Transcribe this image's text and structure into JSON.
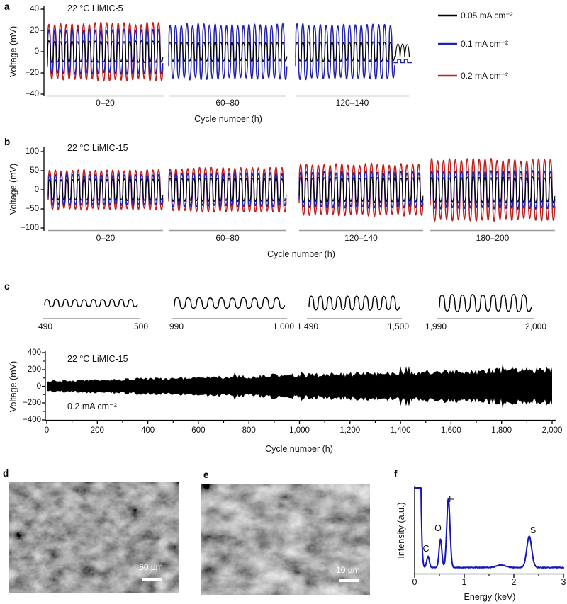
{
  "panels": {
    "a": {
      "label": "a",
      "title": "22 °C LiMIC-5",
      "ylabel": "Voltage (mV)",
      "xlabel": "Cycle number (h)",
      "yticks": [
        "40",
        "20",
        "0",
        "−20",
        "−40"
      ],
      "segment_labels": [
        "0–20",
        "60–80",
        "120–140"
      ]
    },
    "b": {
      "label": "b",
      "title": "22 °C LiMIC-15",
      "ylabel": "Voltage (mV)",
      "xlabel": "Cycle number (h)",
      "yticks": [
        "100",
        "50",
        "0",
        "−50",
        "−100"
      ],
      "segment_labels": [
        "0–20",
        "60–80",
        "120–140",
        "180–200"
      ]
    },
    "c": {
      "label": "c",
      "title": "22 °C LiMIC-15",
      "current": "0.2 mA cm⁻²",
      "ylabel": "Voltage (mV)",
      "xlabel": "Cycle number (h)",
      "yticks": [
        "400",
        "200",
        "0",
        "−200",
        "−400"
      ],
      "xticks": [
        "0",
        "200",
        "400",
        "600",
        "800",
        "1,000",
        "1,200",
        "1,400",
        "1,600",
        "1,800",
        "2,000"
      ],
      "inset_labels": [
        [
          "490",
          "500"
        ],
        [
          "990",
          "1,000"
        ],
        [
          "1,490",
          "1,500"
        ],
        [
          "1,990",
          "2,000"
        ]
      ]
    },
    "d": {
      "label": "d",
      "scalebar": "50 µm"
    },
    "e": {
      "label": "e",
      "scalebar": "10 µm"
    },
    "f": {
      "label": "f",
      "ylabel": "Intensity (a.u.)",
      "xlabel": "Energy (keV)",
      "xticks": [
        "0",
        "1",
        "2",
        "3"
      ],
      "peak_labels": [
        "C",
        "O",
        "F",
        "S"
      ]
    }
  },
  "legend": {
    "items": [
      {
        "label": "0.05 mA cm⁻²",
        "color": "#000000"
      },
      {
        "label": "0.1 mA cm⁻²",
        "color": "#2222aa"
      },
      {
        "label": "0.2 mA cm⁻²",
        "color": "#bf1f1f"
      }
    ]
  },
  "chart_data": [
    {
      "id": "a",
      "type": "line",
      "title": "22 °C LiMIC-5",
      "xlabel": "Cycle number (h)",
      "ylabel": "Voltage (mV)",
      "ylim": [
        -40,
        40
      ],
      "yticks": [
        40,
        20,
        0,
        -20,
        -40
      ],
      "segments": [
        {
          "label": "0–20",
          "hours": [
            0,
            20
          ],
          "cycles": 20,
          "series": [
            {
              "name": "0.2 mA cm⁻²",
              "color": "#bf1f1f",
              "peak_mV": 27
            },
            {
              "name": "0.1 mA cm⁻²",
              "color": "#2222aa",
              "peak_mV": 21
            },
            {
              "name": "0.05 mA cm⁻²",
              "color": "#000000",
              "peak_mV": 10
            }
          ]
        },
        {
          "label": "60–80",
          "hours": [
            60,
            80
          ],
          "cycles": 21,
          "series": [
            {
              "name": "0.1 mA cm⁻²",
              "color": "#2222aa",
              "peak_mV": 26
            },
            {
              "name": "0.05 mA cm⁻²",
              "color": "#000000",
              "peak_mV": 9
            }
          ]
        },
        {
          "label": "120–140",
          "hours": [
            120,
            140
          ],
          "cycles": 17,
          "series": [
            {
              "name": "0.1 mA cm⁻²",
              "color": "#2222aa",
              "peak_mV": 26
            },
            {
              "name": "0.05 mA cm⁻²",
              "color": "#000000",
              "peak_mV": 9
            }
          ],
          "tail": {
            "black_peak_mV": 8,
            "blue_step_mV": [
              -8,
              -12
            ]
          }
        }
      ]
    },
    {
      "id": "b",
      "type": "line",
      "title": "22 °C LiMIC-15",
      "xlabel": "Cycle number (h)",
      "ylabel": "Voltage (mV)",
      "ylim": [
        -100,
        100
      ],
      "yticks": [
        100,
        50,
        0,
        -50,
        -100
      ],
      "segments": [
        {
          "label": "0–20",
          "hours": [
            0,
            20
          ],
          "cycles": 20,
          "series": [
            {
              "name": "0.2 mA cm⁻²",
              "color": "#bf1f1f",
              "peak_mV": 52
            },
            {
              "name": "0.1 mA cm⁻²",
              "color": "#2222aa",
              "peak_mV": 40
            },
            {
              "name": "0.05 mA cm⁻²",
              "color": "#000000",
              "peak_mV": 28
            }
          ]
        },
        {
          "label": "60–80",
          "hours": [
            60,
            80
          ],
          "cycles": 20,
          "series": [
            {
              "name": "0.2 mA cm⁻²",
              "color": "#bf1f1f",
              "peak_mV": 58
            },
            {
              "name": "0.1 mA cm⁻²",
              "color": "#2222aa",
              "peak_mV": 44
            },
            {
              "name": "0.05 mA cm⁻²",
              "color": "#000000",
              "peak_mV": 30
            }
          ]
        },
        {
          "label": "120–140",
          "hours": [
            120,
            140
          ],
          "cycles": 21,
          "series": [
            {
              "name": "0.2 mA cm⁻²",
              "color": "#bf1f1f",
              "peak_mV": 68
            },
            {
              "name": "0.1 mA cm⁻²",
              "color": "#2222aa",
              "peak_mV": 47
            },
            {
              "name": "0.05 mA cm⁻²",
              "color": "#000000",
              "peak_mV": 32
            }
          ]
        },
        {
          "label": "180–200",
          "hours": [
            180,
            200
          ],
          "cycles": 21,
          "series": [
            {
              "name": "0.2 mA cm⁻²",
              "color": "#bf1f1f",
              "peak_mV": 80
            },
            {
              "name": "0.1 mA cm⁻²",
              "color": "#2222aa",
              "peak_mV": 50
            },
            {
              "name": "0.05 mA cm⁻²",
              "color": "#000000",
              "peak_mV": 33
            }
          ]
        }
      ]
    },
    {
      "id": "c_insets",
      "type": "line",
      "color": "#000000",
      "windows": [
        {
          "xticks": [
            "490",
            "500"
          ],
          "hours": [
            490,
            500
          ],
          "cycles": 10,
          "peak_mV": 85
        },
        {
          "xticks": [
            "990",
            "1,000"
          ],
          "hours": [
            990,
            1000
          ],
          "cycles": 10,
          "peak_mV": 125
        },
        {
          "xticks": [
            "1,490",
            "1,500"
          ],
          "hours": [
            1490,
            1500
          ],
          "cycles": 10,
          "peak_mV": 160
        },
        {
          "xticks": [
            "1,990",
            "2,000"
          ],
          "hours": [
            1990,
            2000
          ],
          "cycles": 9,
          "peak_mV": 195
        }
      ]
    },
    {
      "id": "c_main",
      "type": "line",
      "color": "#000000",
      "title": "22 °C LiMIC-15",
      "annotation": "0.2 mA cm⁻²",
      "xlabel": "Cycle number (h)",
      "ylabel": "Voltage (mV)",
      "xlim": [
        0,
        2000
      ],
      "ylim": [
        -400,
        400
      ],
      "xticks": [
        0,
        200,
        400,
        600,
        800,
        1000,
        1200,
        1400,
        1600,
        1800,
        2000
      ],
      "yticks": [
        400,
        200,
        0,
        -200,
        -400
      ],
      "envelope_mV": {
        "x": [
          0,
          2000
        ],
        "halfwidth": [
          60,
          195
        ]
      }
    },
    {
      "id": "f",
      "type": "line",
      "color": "#1515b8",
      "xlabel": "Energy (keV)",
      "ylabel": "Intensity (a.u.)",
      "xlim": [
        0,
        3
      ],
      "xticks": [
        0,
        1,
        2,
        3
      ],
      "zero_peak": {
        "keV": 0.055,
        "rel_intensity": 6.0,
        "sigma": 0.04,
        "clipped": true
      },
      "peaks": [
        {
          "element": "C",
          "keV": 0.27,
          "rel_intensity": 0.16,
          "sigma": 0.026
        },
        {
          "element": "O",
          "keV": 0.52,
          "rel_intensity": 0.4,
          "sigma": 0.028
        },
        {
          "element": "F",
          "keV": 0.68,
          "rel_intensity": 0.97,
          "sigma": 0.033
        },
        {
          "element": "",
          "keV": 1.75,
          "rel_intensity": 0.035,
          "sigma": 0.09
        },
        {
          "element": "S",
          "keV": 2.31,
          "rel_intensity": 0.44,
          "sigma": 0.05
        }
      ]
    }
  ]
}
